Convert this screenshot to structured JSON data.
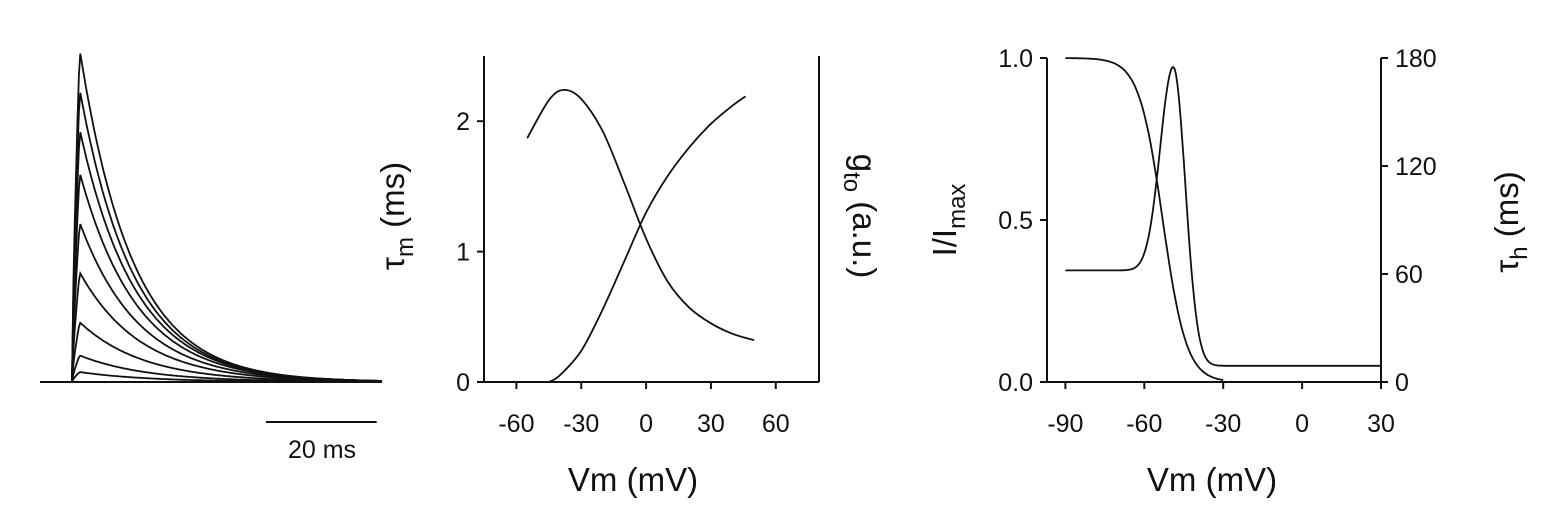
{
  "chart_data": [
    {
      "type": "line",
      "panel": "current-traces",
      "xlabel": "",
      "ylabel": "",
      "traces": [
        {
          "peak": 1.0,
          "tau_ms": 9.5
        },
        {
          "peak": 0.88,
          "tau_ms": 9.7
        },
        {
          "peak": 0.76,
          "tau_ms": 10.0
        },
        {
          "peak": 0.63,
          "tau_ms": 10.3
        },
        {
          "peak": 0.48,
          "tau_ms": 10.6
        },
        {
          "peak": 0.33,
          "tau_ms": 11.0
        },
        {
          "peak": 0.18,
          "tau_ms": 11.5
        },
        {
          "peak": 0.08,
          "tau_ms": 12.0
        },
        {
          "peak": 0.03,
          "tau_ms": 12.5
        }
      ],
      "duration_ms": 56,
      "scale_bar": {
        "value_ms": 20,
        "label": "20 ms"
      }
    },
    {
      "type": "line",
      "panel": "activation",
      "xlabel": "Vm (mV)",
      "ylabel_left": {
        "base": "τ",
        "sub": "m",
        "rest": " (ms)"
      },
      "ylabel_right": {
        "base": "g",
        "sub": "to",
        "rest": " (a.u.)"
      },
      "xlim": [
        -75,
        80
      ],
      "ylim_left": [
        0,
        2.5
      ],
      "xticks": [
        -60,
        -30,
        0,
        30,
        60
      ],
      "yticks_left": [
        0,
        1,
        2
      ],
      "series": [
        {
          "name": "",
          "axis": "left",
          "x": [
            -55,
            -45,
            -38,
            -30,
            -20,
            -10,
            0,
            10,
            20,
            30,
            40,
            50
          ],
          "y": [
            1.87,
            2.16,
            2.24,
            2.17,
            1.92,
            1.52,
            1.1,
            0.77,
            0.57,
            0.45,
            0.37,
            0.32
          ]
        },
        {
          "name": "",
          "axis": "right",
          "x": [
            -45,
            -40,
            -30,
            -20,
            -10,
            0,
            10,
            20,
            30,
            40,
            46
          ],
          "y": [
            0.0,
            0.05,
            0.24,
            0.56,
            0.93,
            1.3,
            1.58,
            1.8,
            1.98,
            2.12,
            2.19
          ]
        }
      ]
    },
    {
      "type": "line",
      "panel": "inactivation",
      "xlabel": "Vm (mV)",
      "ylabel_left": {
        "base": "I/I",
        "sub": "max",
        "rest": ""
      },
      "ylabel_right": {
        "base": "τ",
        "sub": "h",
        "rest": " (ms)"
      },
      "xlim": [
        -97,
        30
      ],
      "ylim_left": [
        0,
        1
      ],
      "ylim_right": [
        0,
        180
      ],
      "xticks": [
        -90,
        -60,
        -30,
        0,
        30
      ],
      "yticks_left": [
        "0.0",
        "0.5",
        "1.0"
      ],
      "yticks_right": [
        0,
        60,
        120,
        180
      ],
      "series": [
        {
          "name": "",
          "axis": "left",
          "type": "boltzmann",
          "v_half": -53,
          "slope": 4.5,
          "x_range": [
            -90,
            -30
          ]
        },
        {
          "name": "",
          "axis": "right",
          "type": "bell",
          "peak_v": -49,
          "peak": 175,
          "base_left": 62,
          "base_right": 9,
          "x_range": [
            -90,
            30
          ]
        }
      ]
    }
  ]
}
